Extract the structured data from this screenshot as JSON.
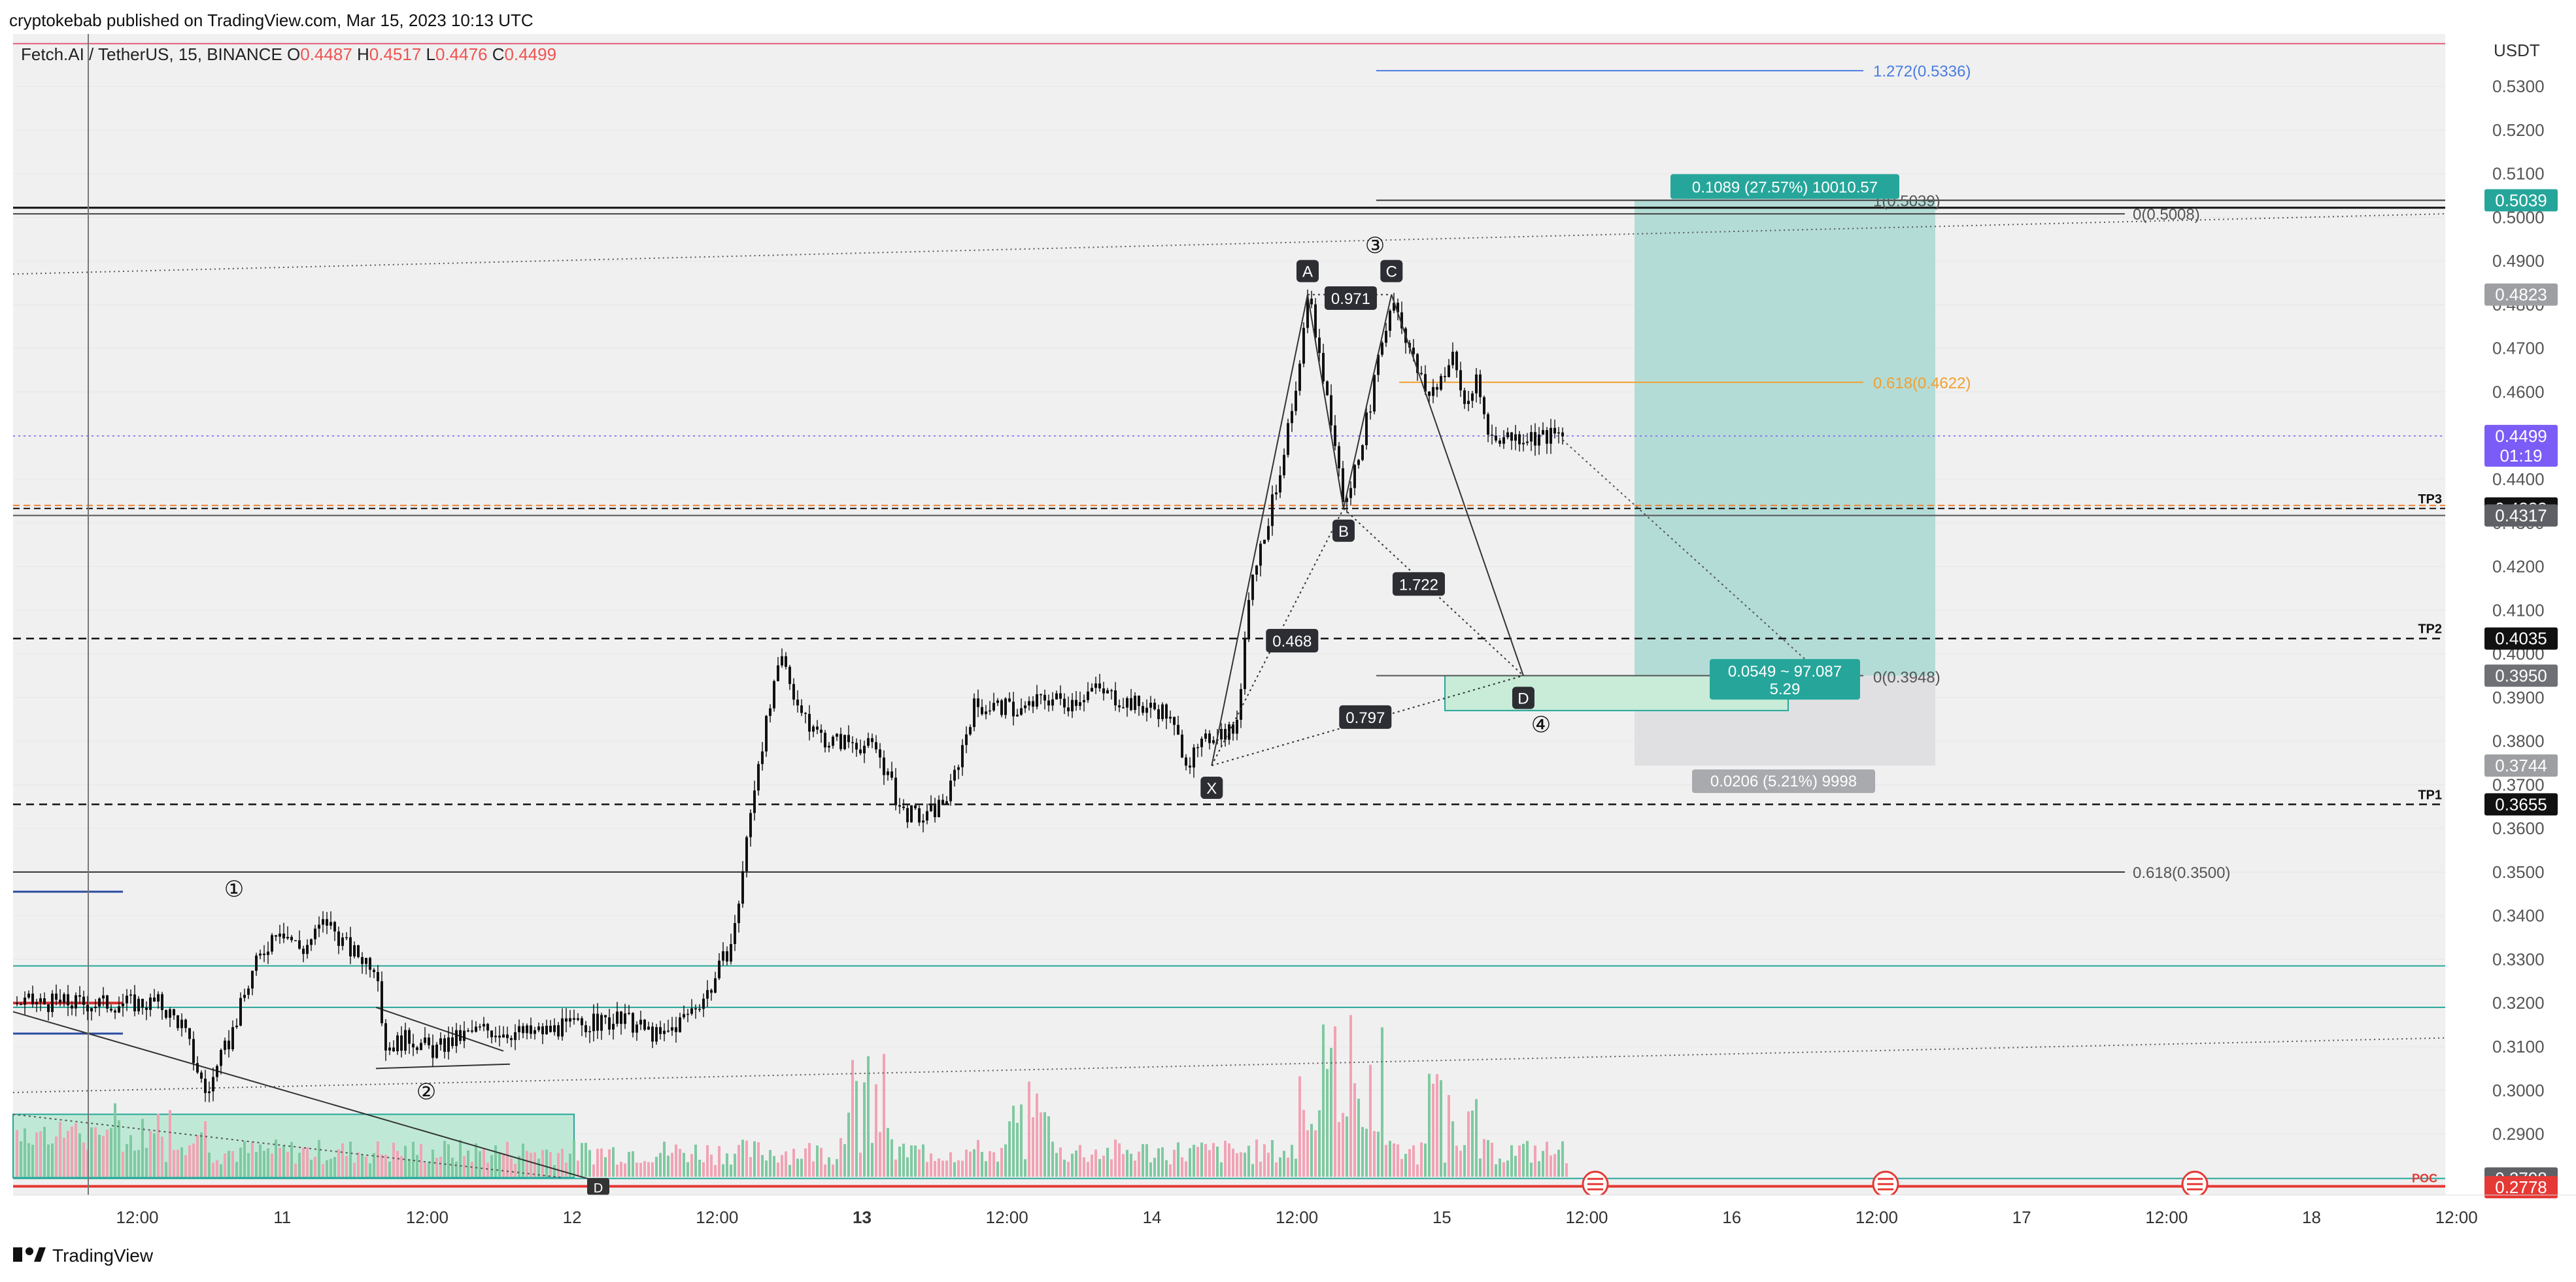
{
  "header": {
    "published": "cryptokebab published on TradingView.com, Mar 15, 2023 10:13 UTC",
    "symbol": "Fetch.AI / TetherUS, 15, BINANCE",
    "ohlc": {
      "o_label": "O",
      "o": "0.4487",
      "h_label": "H",
      "h": "0.4517",
      "l_label": "L",
      "l": "0.4476",
      "c_label": "C",
      "c": "0.4499"
    }
  },
  "footer": {
    "logo_text": "TradingView"
  },
  "colors": {
    "bg": "#f0f0f0",
    "up": "#26a69a",
    "down": "#ef5350",
    "vol_up": "#7fc9a1",
    "vol_down": "#f1a3b4",
    "target_zone": "#b4dcd7",
    "stop_zone": "#e0e0e2",
    "fib_orange": "#f0a030",
    "fib_blue": "#4a7be0",
    "price_badge": "#7b5cf6"
  },
  "chart_data": {
    "type": "candlestick",
    "price_axis": {
      "unit": "USDT",
      "ymin": 0.276,
      "ymax": 0.542,
      "ticks": [
        "0.5300",
        "0.5200",
        "0.5100",
        "0.5000",
        "0.4900",
        "0.4800",
        "0.4700",
        "0.4600",
        "0.4500",
        "0.4400",
        "0.4300",
        "0.4200",
        "0.4100",
        "0.4000",
        "0.3900",
        "0.3800",
        "0.3700",
        "0.3600",
        "0.3500",
        "0.3400",
        "0.3300",
        "0.3200",
        "0.3100",
        "0.3000",
        "0.2900"
      ]
    },
    "time_axis": {
      "labels": [
        "12:00",
        "11",
        "12:00",
        "12",
        "12:00",
        "13",
        "12:00",
        "14",
        "12:00",
        "15",
        "12:00",
        "16",
        "12:00",
        "17",
        "12:00",
        "18",
        "12:00"
      ],
      "bold": [
        "13"
      ]
    },
    "price_series": [
      [
        "Mar 10 19:00",
        0.32
      ],
      [
        "Mar 10 21:00",
        0.315
      ],
      [
        "Mar 10 23:00",
        0.299
      ],
      [
        "Mar 11 01:00",
        0.312
      ],
      [
        "Mar 11 03:00",
        0.328
      ],
      [
        "Mar 11 05:00",
        0.338
      ],
      [
        "Mar 11 07:00",
        0.332
      ],
      [
        "Mar 11 09:00",
        0.339
      ],
      [
        "Mar 11 11:00",
        0.332
      ],
      [
        "Mar 11 13:00",
        0.329
      ],
      [
        "Mar 11 14:00",
        0.31
      ],
      [
        "Mar 11 16:00",
        0.312
      ],
      [
        "Mar 11 18:00",
        0.309
      ],
      [
        "Mar 11 20:00",
        0.312
      ],
      [
        "Mar 11 22:00",
        0.314
      ],
      [
        "Mar 12 02:00",
        0.313
      ],
      [
        "Mar 12 06:00",
        0.315
      ],
      [
        "Mar 12 10:00",
        0.316
      ],
      [
        "Mar 12 13:00",
        0.312
      ],
      [
        "Mar 12 15:00",
        0.317
      ],
      [
        "Mar 12 17:00",
        0.323
      ],
      [
        "Mar 12 19:00",
        0.335
      ],
      [
        "Mar 12 21:00",
        0.375
      ],
      [
        "Mar 12 23:00",
        0.399
      ],
      [
        "Mar 13 01:00",
        0.384
      ],
      [
        "Mar 13 03:00",
        0.38
      ],
      [
        "Mar 13 05:00",
        0.38
      ],
      [
        "Mar 13 07:00",
        0.378
      ],
      [
        "Mar 13 09:00",
        0.364
      ],
      [
        "Mar 13 11:00",
        0.362
      ],
      [
        "Mar 13 13:00",
        0.368
      ],
      [
        "Mar 13 15:00",
        0.388
      ],
      [
        "Mar 13 17:00",
        0.388
      ],
      [
        "Mar 13 19:00",
        0.387
      ],
      [
        "Mar 13 21:00",
        0.39
      ],
      [
        "Mar 13 23:00",
        0.389
      ],
      [
        "Mar 14 01:00",
        0.392
      ],
      [
        "Mar 14 03:00",
        0.39
      ],
      [
        "Mar 14 05:00",
        0.388
      ],
      [
        "Mar 14 07:00",
        0.387
      ],
      [
        "Mar 14 09:00",
        0.375
      ],
      [
        "Mar 14 11:00",
        0.382
      ],
      [
        "Mar 14 13:00",
        0.383
      ],
      [
        "Mar 14 14:00",
        0.415
      ],
      [
        "Mar 14 16:00",
        0.435
      ],
      [
        "Mar 14 18:00",
        0.46
      ],
      [
        "Mar 14 19:00",
        0.4823
      ],
      [
        "Mar 14 21:00",
        0.451
      ],
      [
        "Mar 14 22:00",
        0.433
      ],
      [
        "Mar 15 00:00",
        0.456
      ],
      [
        "Mar 15 02:00",
        0.4823
      ],
      [
        "Mar 15 04:00",
        0.465
      ],
      [
        "Mar 15 05:00",
        0.459
      ],
      [
        "Mar 15 07:00",
        0.468
      ],
      [
        "Mar 15 08:00",
        0.457
      ],
      [
        "Mar 15 09:00",
        0.462
      ],
      [
        "Mar 15 10:00",
        0.4499
      ]
    ],
    "horizontal_levels": [
      {
        "label": "TP3",
        "price": 0.4333
      },
      {
        "label": "TP2",
        "price": 0.4035
      },
      {
        "label": "TP1",
        "price": 0.3655
      }
    ],
    "axis_badges": [
      {
        "price": 0.5039,
        "text": "0.5039"
      },
      {
        "price": 0.4823,
        "text": "0.4823"
      },
      {
        "price": 0.4499,
        "text": "0.4499",
        "sub": "01:19"
      },
      {
        "price": 0.4333,
        "text": "0.4333"
      },
      {
        "price": 0.4317,
        "text": "0.4317"
      },
      {
        "price": 0.4035,
        "text": "0.4035"
      },
      {
        "price": 0.395,
        "text": "0.3950"
      },
      {
        "price": 0.3744,
        "text": "0.3744"
      },
      {
        "price": 0.3655,
        "text": "0.3655"
      },
      {
        "price": 0.2798,
        "text": "0.2798"
      },
      {
        "price": 0.2778,
        "text": "0.2778"
      }
    ],
    "fib_labels": [
      {
        "text": "1.272(0.5336)",
        "price": 0.5336
      },
      {
        "text": "1(0.5039)",
        "price": 0.5039
      },
      {
        "text": "0(0.5008)",
        "price": 0.5008
      },
      {
        "text": "0.618(0.4622)",
        "price": 0.4622
      },
      {
        "text": "0(0.3948)",
        "price": 0.3948
      },
      {
        "text": "0.618(0.3500)",
        "price": 0.35
      }
    ],
    "harmonic_pattern": {
      "points": [
        {
          "label": "X",
          "time": "Mar 14 11:00",
          "price": 0.3744
        },
        {
          "label": "A",
          "time": "Mar 14 19:00",
          "price": 0.4823
        },
        {
          "label": "B",
          "time": "Mar 14 22:00",
          "price": 0.4333
        },
        {
          "label": "C",
          "time": "Mar 15 02:00",
          "price": 0.4823
        },
        {
          "label": "D",
          "time": "Mar 15 13:00",
          "price": 0.395
        }
      ],
      "ratios": [
        "0.971",
        "1.722",
        "0.468",
        "0.797"
      ]
    },
    "wave_labels": [
      "①",
      "②",
      "③",
      "④"
    ],
    "position_tool": {
      "target": "0.1089 (27.57%) 10010.57",
      "stop": "0.0206 (5.21%) 9998",
      "entry_line1": "0.0549 ~ 97.087",
      "entry_line2": "5.29"
    },
    "markers": {
      "poc": "POC",
      "d_flag": "D"
    }
  }
}
